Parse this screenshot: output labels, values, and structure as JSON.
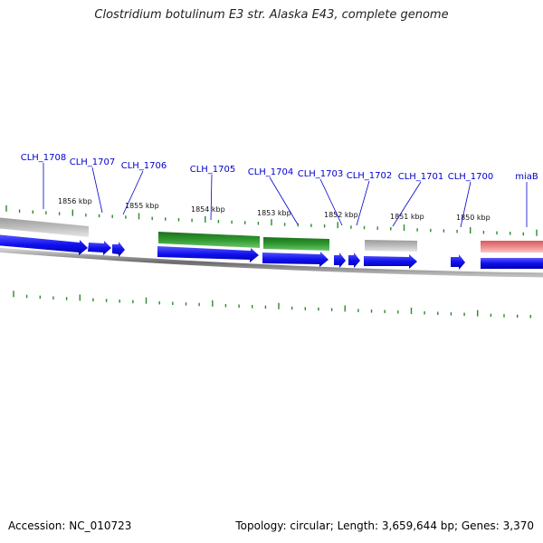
{
  "title": "Clostridium botulinum E3 str. Alaska E43, complete genome",
  "accession": "Accession: NC_010723",
  "summary": "Topology: circular; Length: 3,659,644 bp; Genes: 3,370",
  "colors": {
    "cds": "#1010ee",
    "rna_green": "#2a8a2a",
    "gene_gray": "#b3b3b3",
    "pseudo_pink": "#e87a7a",
    "tick": "#2a8a2a",
    "label": "#0000cc",
    "backbone": "#888888"
  },
  "gene_labels": [
    "CLH_1708",
    "CLH_1707",
    "CLH_1706",
    "CLH_1705",
    "CLH_1704",
    "CLH_1703",
    "CLH_1702",
    "CLH_1701",
    "CLH_1700",
    "miaB"
  ],
  "kbp_labels": [
    "1856 kbp",
    "1855 kbp",
    "1854 kbp",
    "1853 kbp",
    "1852 kbp",
    "1851 kbp",
    "1850 kbp"
  ]
}
